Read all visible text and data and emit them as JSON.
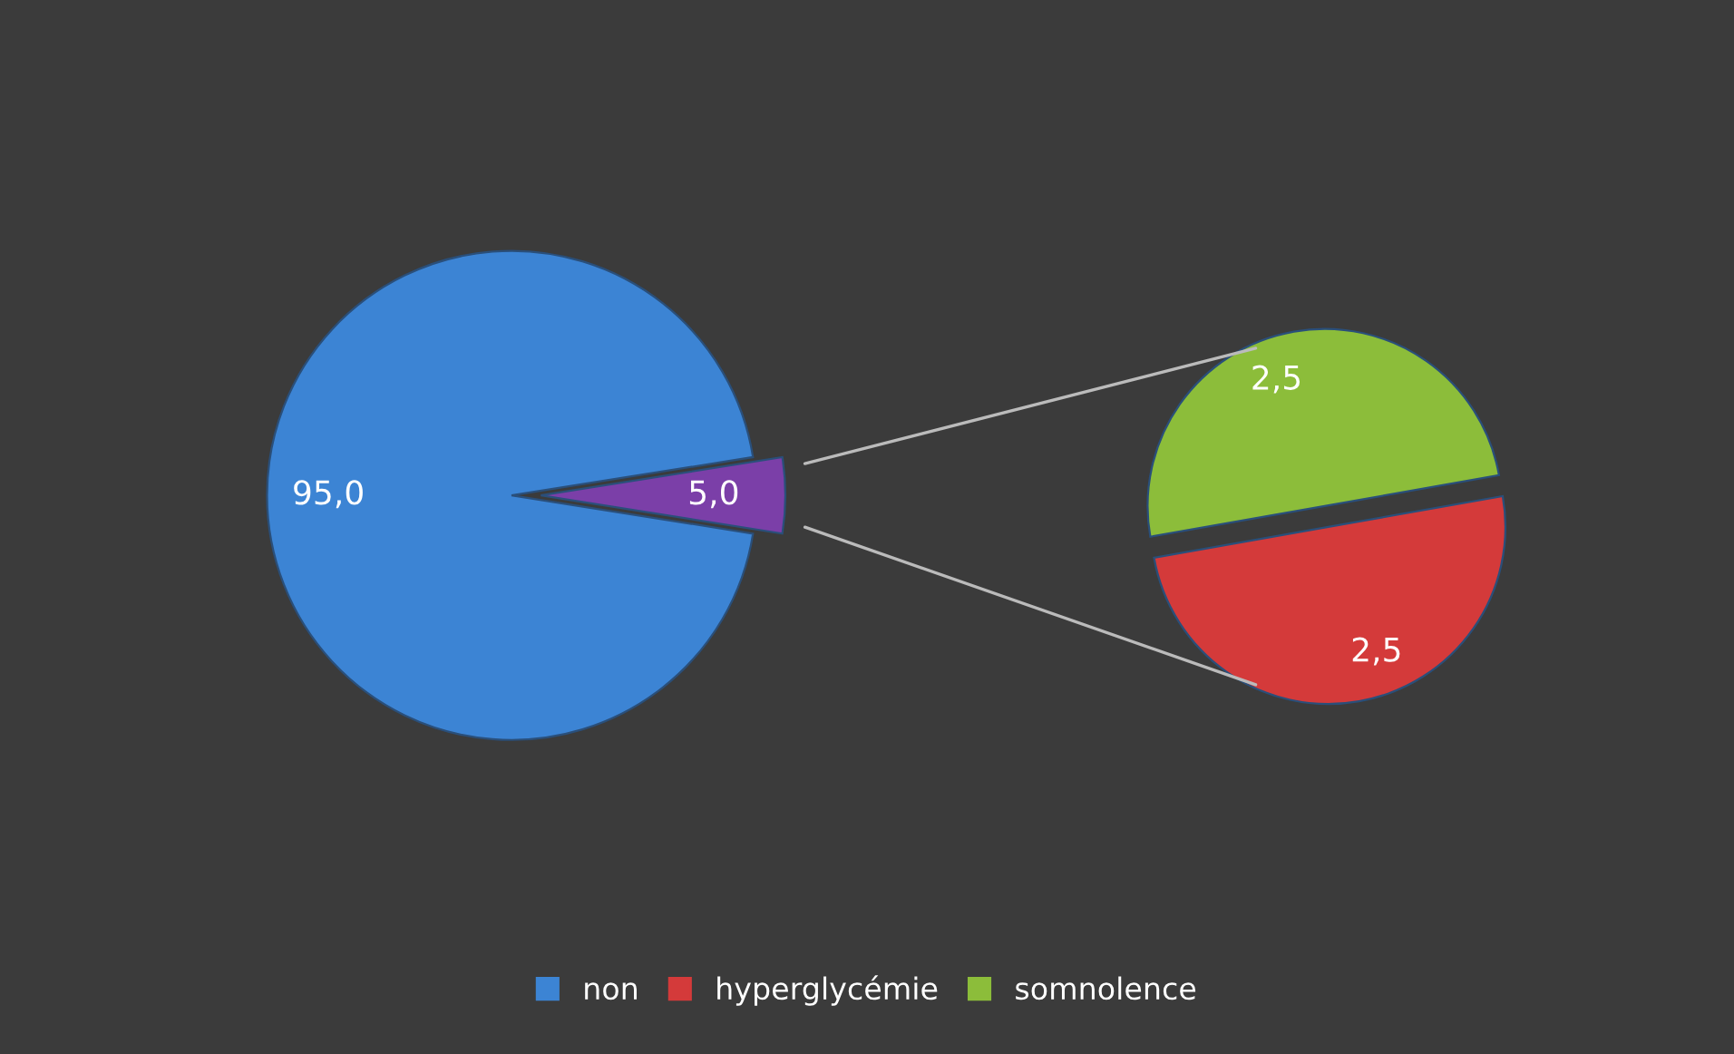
{
  "chart_data": [
    {
      "type": "pie",
      "categories": [
        "non",
        null
      ],
      "values": [
        95,
        5
      ],
      "value_labels": [
        "95,0",
        "5,0"
      ],
      "colors": [
        "#3c84d4",
        "#7b3fa8"
      ],
      "legend": "bottom"
    },
    {
      "type": "pie",
      "categories": [
        "hyperglycémie",
        "somnolence"
      ],
      "values": [
        2.5,
        2.5
      ],
      "value_labels": [
        "2,5",
        "2,5"
      ],
      "colors": [
        "#d43a3a",
        "#8cbd3a"
      ],
      "legend": "bottom"
    }
  ]
}
